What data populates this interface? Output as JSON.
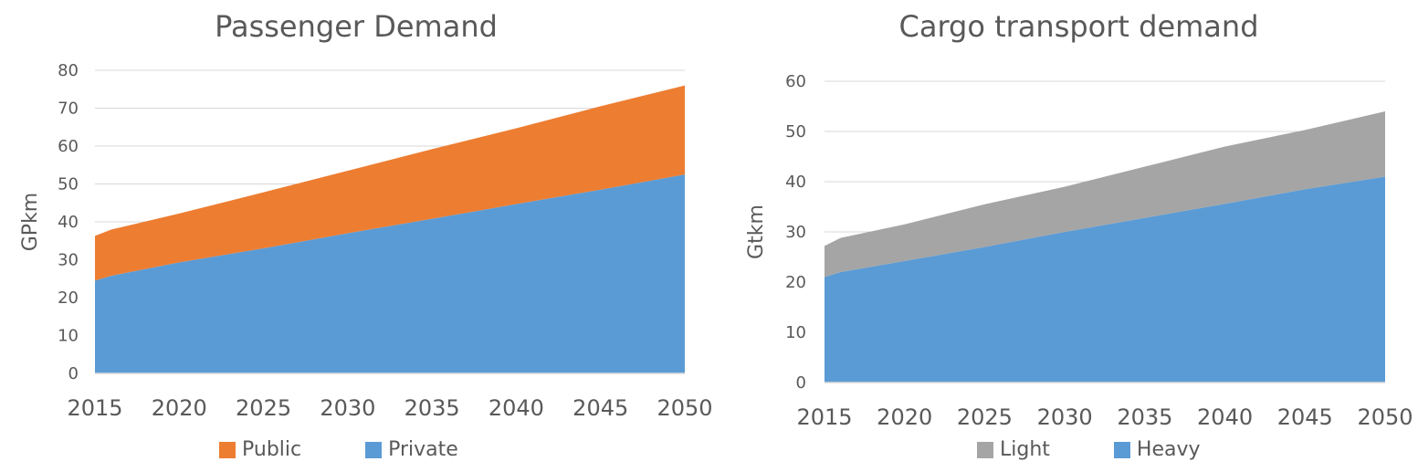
{
  "chart_data": [
    {
      "type": "area",
      "stacked": true,
      "title": "Passenger Demand",
      "xlabel": "",
      "ylabel": "GPkm",
      "ylim": [
        0,
        80
      ],
      "yticks": [
        0,
        10,
        20,
        30,
        40,
        50,
        60,
        70,
        80
      ],
      "xticks": [
        2015,
        2020,
        2025,
        2030,
        2035,
        2040,
        2045,
        2050
      ],
      "xlim": [
        2015,
        2050
      ],
      "x": [
        2015,
        2016,
        2020,
        2025,
        2030,
        2035,
        2040,
        2045,
        2050
      ],
      "series": [
        {
          "name": "Private",
          "color": "#5B9BD5",
          "values": [
            24.5,
            25.8,
            29.3,
            33.0,
            37.0,
            40.8,
            44.7,
            48.5,
            52.5
          ]
        },
        {
          "name": "Public",
          "color": "#ED7D31",
          "values": [
            11.8,
            12.2,
            12.9,
            14.8,
            16.5,
            18.4,
            20.0,
            22.0,
            23.5
          ]
        }
      ],
      "legend": [
        "Public",
        "Private"
      ],
      "legend_position": "bottom",
      "grid": true
    },
    {
      "type": "area",
      "stacked": true,
      "title": "Cargo transport demand",
      "xlabel": "",
      "ylabel": "Gtkm",
      "ylim": [
        0,
        60
      ],
      "yticks": [
        0,
        10,
        20,
        30,
        40,
        50,
        60
      ],
      "xticks": [
        2015,
        2020,
        2025,
        2030,
        2035,
        2040,
        2045,
        2050
      ],
      "xlim": [
        2015,
        2050
      ],
      "x": [
        2015,
        2016,
        2020,
        2025,
        2030,
        2035,
        2040,
        2045,
        2050
      ],
      "series": [
        {
          "name": "Heavy",
          "color": "#5B9BD5",
          "values": [
            21.0,
            22.0,
            24.2,
            27.0,
            30.0,
            32.8,
            35.6,
            38.5,
            41.0
          ]
        },
        {
          "name": "Light",
          "color": "#A5A5A5",
          "values": [
            6.2,
            6.8,
            7.3,
            8.5,
            9.0,
            10.2,
            11.4,
            11.8,
            13.0
          ]
        }
      ],
      "legend": [
        "Light",
        "Heavy"
      ],
      "legend_position": "bottom",
      "grid": true
    }
  ]
}
